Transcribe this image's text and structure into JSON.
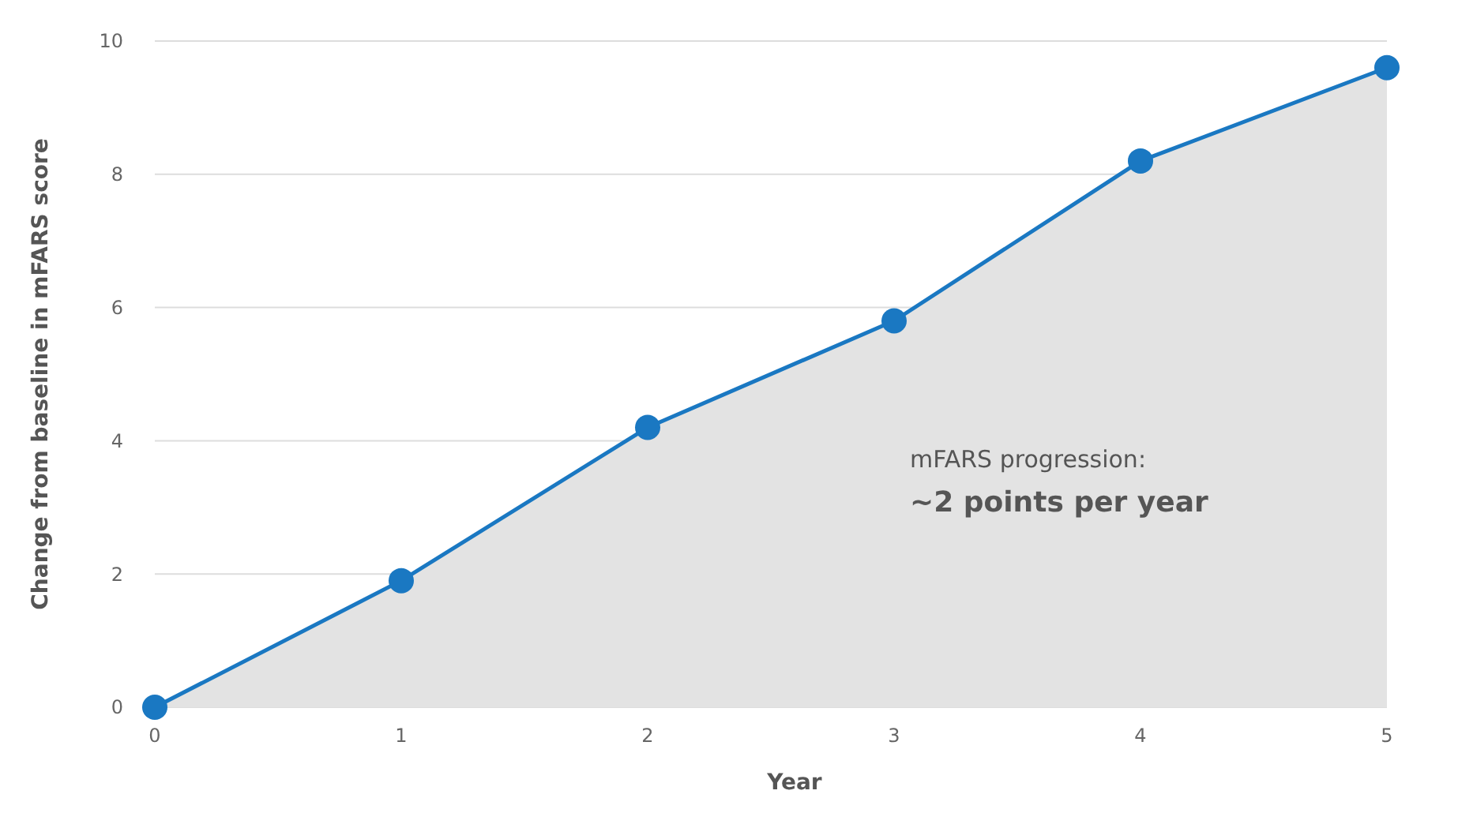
{
  "chart_data": {
    "type": "area",
    "xlabel": "Year",
    "ylabel": "Change from baseline in mFARS score",
    "x": [
      0,
      1,
      2,
      3,
      4,
      5
    ],
    "series": [
      {
        "color": "#1a78c2",
        "values": [
          0,
          1.9,
          4.2,
          5.8,
          8.2,
          9.6
        ]
      }
    ],
    "xlim": [
      0,
      5
    ],
    "xticks": [
      0,
      1,
      2,
      3,
      4,
      5
    ],
    "ylim": [
      0,
      10
    ],
    "yticks": [
      0,
      2,
      4,
      6,
      8,
      10
    ],
    "grid": "y",
    "marker": "circle",
    "line_style": "solid",
    "annotations": [
      "mFARS progression:",
      "~2 points per year"
    ]
  }
}
